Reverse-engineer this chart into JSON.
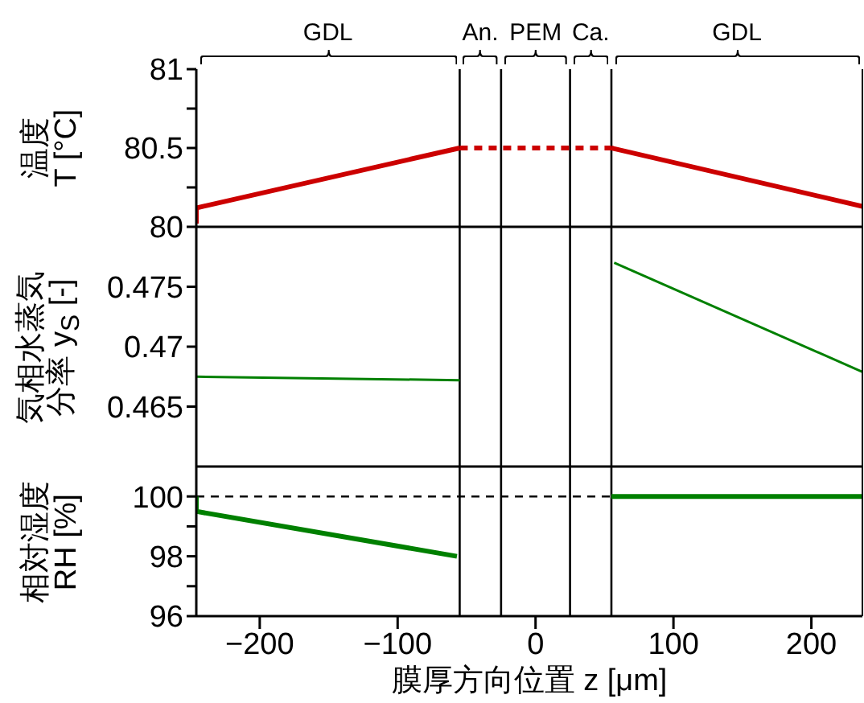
{
  "chart_data": [
    {
      "type": "line",
      "ylabel": "温度\nT [°C]",
      "xlim": [
        -246,
        237
      ],
      "xticks": [
        -200,
        -100,
        0,
        100,
        200
      ],
      "ylim": [
        80,
        81
      ],
      "yticks": [
        80,
        {
          "value": 80.25,
          "label": null
        },
        80.5,
        {
          "value": 80.75,
          "label": null
        },
        81
      ],
      "tick_labels": "y",
      "grid": false,
      "legend": false,
      "annotations": [
        "GDL",
        "An.",
        "PEM",
        "Ca.",
        "GDL"
      ],
      "ref_lines": [
        {
          "axis": "x",
          "value": -55,
          "color": "#000000"
        },
        {
          "axis": "x",
          "value": -25,
          "color": "#000000"
        },
        {
          "axis": "x",
          "value": 25,
          "color": "#000000"
        },
        {
          "axis": "x",
          "value": 55,
          "color": "#000000"
        }
      ],
      "series": [
        {
          "color": "#cc0000",
          "x": [
            -246,
            -246,
            -55
          ],
          "values": [
            80.02,
            80.12,
            80.5
          ],
          "line_style": "solid"
        },
        {
          "color": "#cc0000",
          "x": [
            -55,
            55
          ],
          "values": [
            80.5,
            80.5
          ],
          "line_style": "dashed"
        },
        {
          "color": "#cc0000",
          "x": [
            55,
            237
          ],
          "values": [
            80.5,
            80.13
          ],
          "line_style": "solid"
        }
      ]
    },
    {
      "type": "line",
      "ylabel": "気相水蒸気分率 y$_{S}$ [-]",
      "xlim": [
        -246,
        237
      ],
      "xticks": [
        -200,
        -100,
        0,
        100,
        200
      ],
      "ylim": [
        0.46,
        0.48
      ],
      "yticks": [
        0.465,
        0.47,
        0.475
      ],
      "tick_labels": "y",
      "grid": false,
      "legend": false,
      "ref_lines": [
        {
          "axis": "x",
          "value": -55,
          "color": "#000000"
        },
        {
          "axis": "x",
          "value": -25,
          "color": "#000000"
        },
        {
          "axis": "x",
          "value": 25,
          "color": "#000000"
        },
        {
          "axis": "x",
          "value": 55,
          "color": "#000000"
        }
      ],
      "series": [
        {
          "color": "#008000",
          "x": [
            -246,
            -55
          ],
          "values": [
            0.4675,
            0.4672
          ],
          "line_style": "solid"
        },
        {
          "color": "#008000",
          "x": [
            57,
            237
          ],
          "values": [
            0.477,
            0.4679
          ],
          "line_style": "solid"
        }
      ]
    },
    {
      "type": "line",
      "ylabel": "相対湿度\nRH [%]",
      "xlabel": "膜厚方向位置 z [μm]",
      "xlim": [
        -246,
        237
      ],
      "xticks": [
        -200,
        -100,
        0,
        100,
        200
      ],
      "ylim": [
        96,
        101
      ],
      "yticks": [
        96,
        {
          "value": 97,
          "label": null
        },
        98,
        {
          "value": 99,
          "label": null
        },
        100
      ],
      "grid": false,
      "legend": false,
      "ref_lines": [
        {
          "axis": "x",
          "value": -55,
          "color": "#000000"
        },
        {
          "axis": "x",
          "value": -25,
          "color": "#000000"
        },
        {
          "axis": "x",
          "value": 25,
          "color": "#000000"
        },
        {
          "axis": "x",
          "value": 55,
          "color": "#000000"
        }
      ],
      "series": [
        {
          "color": "#000000",
          "x": [
            -246,
            237
          ],
          "values": [
            100,
            100
          ],
          "line_style": "dashed"
        },
        {
          "color": "#008000",
          "x": [
            -246,
            -246,
            -57
          ],
          "values": [
            100,
            99.5,
            98
          ],
          "line_style": "solid"
        },
        {
          "color": "#008000",
          "x": [
            55,
            237
          ],
          "values": [
            100,
            100
          ],
          "line_style": "solid"
        }
      ]
    }
  ]
}
